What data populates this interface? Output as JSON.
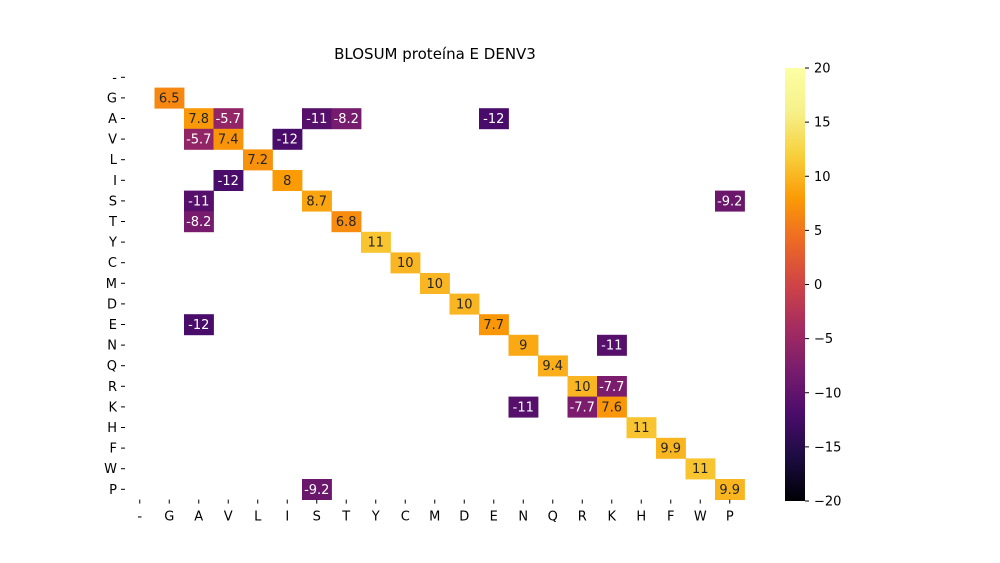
{
  "chart_data": {
    "type": "heatmap",
    "title": "BLOSUM proteína E DENV3",
    "x_labels": [
      "-",
      "G",
      "A",
      "V",
      "L",
      "I",
      "S",
      "T",
      "Y",
      "C",
      "M",
      "D",
      "E",
      "N",
      "Q",
      "R",
      "K",
      "H",
      "F",
      "W",
      "P"
    ],
    "y_labels": [
      "-",
      "G",
      "A",
      "V",
      "L",
      "I",
      "S",
      "T",
      "Y",
      "C",
      "M",
      "D",
      "E",
      "N",
      "Q",
      "R",
      "K",
      "H",
      "F",
      "W",
      "P"
    ],
    "colormap": "inferno",
    "vmin": -20,
    "vmax": 20,
    "colorbar_ticks": [
      20,
      15,
      10,
      5,
      0,
      -5,
      -10,
      -15,
      -20
    ],
    "colorbar_tick_labels": [
      "20",
      "15",
      "10",
      "5",
      "0",
      "−5",
      "−10",
      "−15",
      "−20"
    ],
    "cells": [
      {
        "row": "G",
        "col": "G",
        "value": 6.5,
        "label": "6.5"
      },
      {
        "row": "A",
        "col": "A",
        "value": 7.8,
        "label": "7.8"
      },
      {
        "row": "A",
        "col": "V",
        "value": -5.7,
        "label": "-5.7"
      },
      {
        "row": "A",
        "col": "S",
        "value": -11,
        "label": "-11"
      },
      {
        "row": "A",
        "col": "T",
        "value": -8.2,
        "label": "-8.2"
      },
      {
        "row": "A",
        "col": "E",
        "value": -12,
        "label": "-12"
      },
      {
        "row": "V",
        "col": "A",
        "value": -5.7,
        "label": "-5.7"
      },
      {
        "row": "V",
        "col": "V",
        "value": 7.4,
        "label": "7.4"
      },
      {
        "row": "V",
        "col": "I",
        "value": -12,
        "label": "-12"
      },
      {
        "row": "L",
        "col": "L",
        "value": 7.2,
        "label": "7.2"
      },
      {
        "row": "I",
        "col": "V",
        "value": -12,
        "label": "-12"
      },
      {
        "row": "I",
        "col": "I",
        "value": 8,
        "label": "8"
      },
      {
        "row": "S",
        "col": "A",
        "value": -11,
        "label": "-11"
      },
      {
        "row": "S",
        "col": "S",
        "value": 8.7,
        "label": "8.7"
      },
      {
        "row": "S",
        "col": "P",
        "value": -9.2,
        "label": "-9.2"
      },
      {
        "row": "T",
        "col": "A",
        "value": -8.2,
        "label": "-8.2"
      },
      {
        "row": "T",
        "col": "T",
        "value": 6.8,
        "label": "6.8"
      },
      {
        "row": "Y",
        "col": "Y",
        "value": 11,
        "label": "11"
      },
      {
        "row": "C",
        "col": "C",
        "value": 10,
        "label": "10"
      },
      {
        "row": "M",
        "col": "M",
        "value": 10,
        "label": "10"
      },
      {
        "row": "D",
        "col": "D",
        "value": 10,
        "label": "10"
      },
      {
        "row": "E",
        "col": "A",
        "value": -12,
        "label": "-12"
      },
      {
        "row": "E",
        "col": "E",
        "value": 7.7,
        "label": "7.7"
      },
      {
        "row": "N",
        "col": "N",
        "value": 9,
        "label": "9"
      },
      {
        "row": "N",
        "col": "K",
        "value": -11,
        "label": "-11"
      },
      {
        "row": "Q",
        "col": "Q",
        "value": 9.4,
        "label": "9.4"
      },
      {
        "row": "R",
        "col": "R",
        "value": 10,
        "label": "10"
      },
      {
        "row": "R",
        "col": "K",
        "value": -7.7,
        "label": "-7.7"
      },
      {
        "row": "K",
        "col": "N",
        "value": -11,
        "label": "-11"
      },
      {
        "row": "K",
        "col": "R",
        "value": -7.7,
        "label": "-7.7"
      },
      {
        "row": "K",
        "col": "K",
        "value": 7.6,
        "label": "7.6"
      },
      {
        "row": "H",
        "col": "H",
        "value": 11,
        "label": "11"
      },
      {
        "row": "F",
        "col": "F",
        "value": 9.9,
        "label": "9.9"
      },
      {
        "row": "W",
        "col": "W",
        "value": 11,
        "label": "11"
      },
      {
        "row": "P",
        "col": "S",
        "value": -9.2,
        "label": "-9.2"
      },
      {
        "row": "P",
        "col": "P",
        "value": 9.9,
        "label": "9.9"
      }
    ]
  }
}
